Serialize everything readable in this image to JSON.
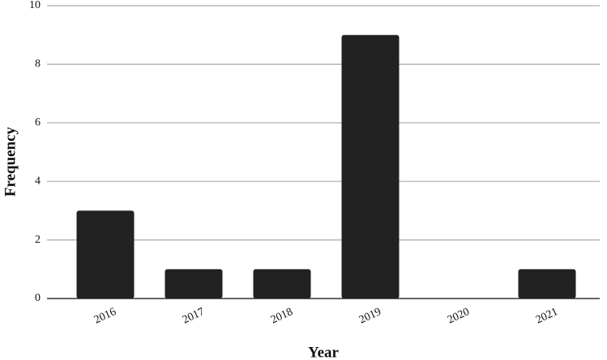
{
  "chart_data": {
    "type": "bar",
    "x_label": "Year",
    "y_label": "Frequency",
    "categories": [
      "2016",
      "2017",
      "2018",
      "2019",
      "2020",
      "2021"
    ],
    "values": [
      3,
      1,
      1,
      9,
      0,
      1
    ],
    "color": "#222222",
    "ylim": [
      0,
      10
    ],
    "yticks": [
      0,
      2,
      4,
      6,
      8,
      10
    ],
    "grid": true
  }
}
